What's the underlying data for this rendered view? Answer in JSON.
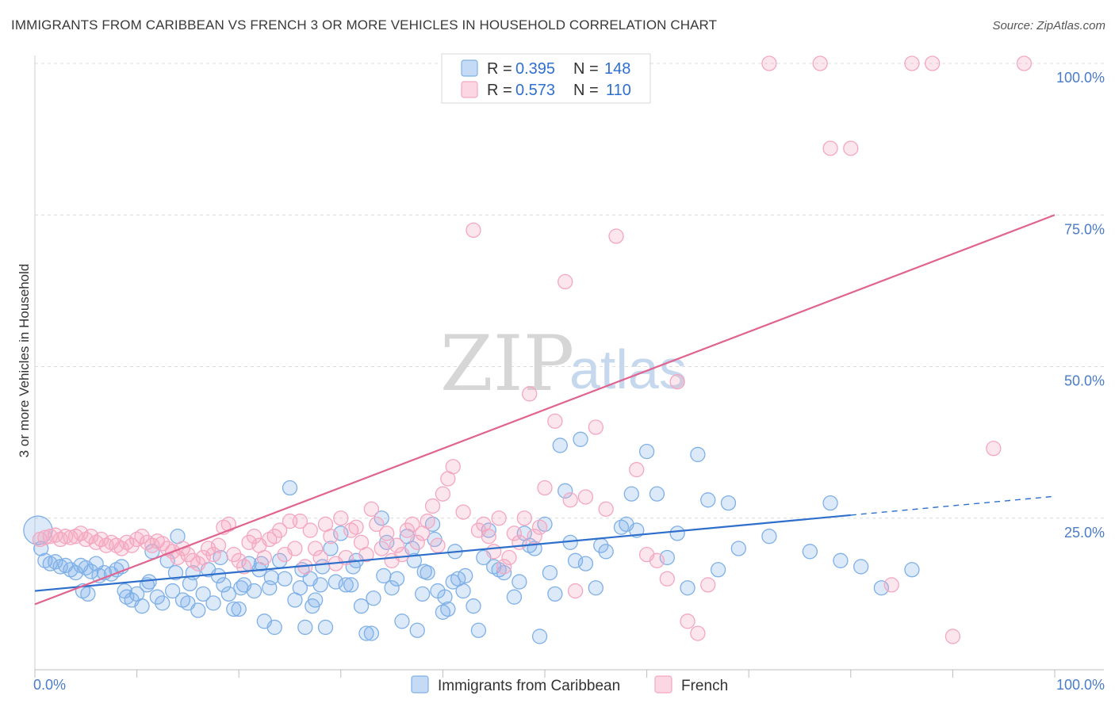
{
  "title": "IMMIGRANTS FROM CARIBBEAN VS FRENCH 3 OR MORE VEHICLES IN HOUSEHOLD CORRELATION CHART",
  "source": "Source: ZipAtlas.com",
  "watermark": {
    "zip": "ZIP",
    "atlas": "atlas"
  },
  "legend": {
    "series1": {
      "r_label": "R = ",
      "r_value": "0.395",
      "n_label": "N = ",
      "n_value": "148",
      "color": "#7fb0e8"
    },
    "series2": {
      "r_label": "R = ",
      "r_value": "0.573",
      "n_label": "N = ",
      "n_value": "110",
      "color": "#f4a7c0"
    }
  },
  "chart_data": {
    "type": "scatter",
    "title": "IMMIGRANTS FROM CARIBBEAN VS FRENCH 3 OR MORE VEHICLES IN HOUSEHOLD CORRELATION CHART",
    "xlabel": "",
    "ylabel": "3 or more Vehicles in Household",
    "xlim": [
      0,
      100
    ],
    "ylim": [
      0,
      100
    ],
    "x_ticks": [
      "0.0%",
      "100.0%"
    ],
    "y_ticks": [
      {
        "v": 25,
        "label": "25.0%"
      },
      {
        "v": 50,
        "label": "50.0%"
      },
      {
        "v": 75,
        "label": "75.0%"
      },
      {
        "v": 100,
        "label": "100.0%"
      }
    ],
    "grid": true,
    "legend_position": "top-center",
    "series": [
      {
        "name": "Immigrants from Caribbean",
        "color": "#7fb0e8",
        "line_color": "#2f6fcc",
        "trend": {
          "x0": 0,
          "y0": 13.0,
          "x1": 80,
          "y1": 25.5,
          "dash_to_x": 100,
          "dash_to_y": 28.6
        },
        "points": [
          [
            0.3,
            23
          ],
          [
            0.6,
            20
          ],
          [
            1,
            18
          ],
          [
            1.5,
            17.5
          ],
          [
            2,
            17.8
          ],
          [
            2.5,
            17
          ],
          [
            3,
            17.2
          ],
          [
            3.5,
            16.5
          ],
          [
            4,
            16
          ],
          [
            4.5,
            17.2
          ],
          [
            5,
            16.8
          ],
          [
            5.5,
            16.2
          ],
          [
            6,
            17.5
          ],
          [
            6.3,
            15.5
          ],
          [
            6.8,
            16
          ],
          [
            7.5,
            15.8
          ],
          [
            8,
            16.5
          ],
          [
            8.5,
            17
          ],
          [
            9,
            12
          ],
          [
            9.5,
            11.5
          ],
          [
            10,
            12.5
          ],
          [
            10.5,
            10.5
          ],
          [
            11,
            14
          ],
          [
            11.5,
            19.5
          ],
          [
            12,
            12
          ],
          [
            12.5,
            11
          ],
          [
            13,
            18
          ],
          [
            13.5,
            13
          ],
          [
            14,
            22
          ],
          [
            14.5,
            11.5
          ],
          [
            15,
            11
          ],
          [
            15.5,
            16
          ],
          [
            16,
            9.8
          ],
          [
            16.5,
            12.5
          ],
          [
            17,
            16.5
          ],
          [
            17.5,
            11
          ],
          [
            18,
            15.5
          ],
          [
            18.5,
            14
          ],
          [
            19,
            12.5
          ],
          [
            19.5,
            10
          ],
          [
            20,
            10
          ],
          [
            20.5,
            14
          ],
          [
            21,
            17.5
          ],
          [
            21.5,
            13
          ],
          [
            22,
            16.5
          ],
          [
            22.5,
            8
          ],
          [
            23,
            13.5
          ],
          [
            23.5,
            7
          ],
          [
            24,
            18
          ],
          [
            24.5,
            15
          ],
          [
            25,
            30
          ],
          [
            25.5,
            11.5
          ],
          [
            26,
            13.5
          ],
          [
            26.5,
            7
          ],
          [
            27,
            15
          ],
          [
            27.5,
            11.5
          ],
          [
            28,
            14
          ],
          [
            28.5,
            7
          ],
          [
            29,
            20
          ],
          [
            29.5,
            14.5
          ],
          [
            30,
            22.5
          ],
          [
            30.5,
            14
          ],
          [
            31,
            14
          ],
          [
            31.5,
            18
          ],
          [
            32,
            10.5
          ],
          [
            32.5,
            6
          ],
          [
            33,
            6
          ],
          [
            34,
            25
          ],
          [
            34.5,
            21
          ],
          [
            35,
            13.5
          ],
          [
            35.5,
            15
          ],
          [
            36,
            8
          ],
          [
            36.5,
            22
          ],
          [
            37,
            20
          ],
          [
            37.5,
            6.5
          ],
          [
            38,
            12.5
          ],
          [
            38.5,
            16
          ],
          [
            39,
            24
          ],
          [
            39.5,
            13
          ],
          [
            40,
            9.5
          ],
          [
            40.5,
            10
          ],
          [
            41,
            14.5
          ],
          [
            41.5,
            15
          ],
          [
            42,
            13
          ],
          [
            43,
            10.5
          ],
          [
            43.5,
            6.5
          ],
          [
            44,
            18.5
          ],
          [
            44.5,
            23
          ],
          [
            45,
            17
          ],
          [
            45.5,
            16.5
          ],
          [
            46,
            16
          ],
          [
            47,
            12
          ],
          [
            47.5,
            14.5
          ],
          [
            48,
            22.5
          ],
          [
            48.5,
            20.5
          ],
          [
            49,
            20
          ],
          [
            49.5,
            5.5
          ],
          [
            50,
            24
          ],
          [
            50.5,
            16
          ],
          [
            51,
            12.5
          ],
          [
            51.5,
            37
          ],
          [
            52,
            29.5
          ],
          [
            52.5,
            21
          ],
          [
            53,
            18
          ],
          [
            53.5,
            38
          ],
          [
            54,
            17.5
          ],
          [
            55,
            13.5
          ],
          [
            55.5,
            20.5
          ],
          [
            56,
            19.5
          ],
          [
            57.5,
            23.5
          ],
          [
            58,
            24
          ],
          [
            58.5,
            29
          ],
          [
            59,
            23
          ],
          [
            60,
            36
          ],
          [
            61,
            29
          ],
          [
            62,
            18.5
          ],
          [
            63,
            22.5
          ],
          [
            64,
            13.5
          ],
          [
            65,
            35.5
          ],
          [
            66,
            28
          ],
          [
            67,
            16.5
          ],
          [
            68,
            27.5
          ],
          [
            69,
            20
          ],
          [
            72,
            22
          ],
          [
            76,
            19.5
          ],
          [
            78,
            27.5
          ],
          [
            79,
            18
          ],
          [
            81,
            17
          ],
          [
            83,
            13.5
          ],
          [
            86,
            16.5
          ],
          [
            4.7,
            13
          ],
          [
            5.2,
            12.5
          ],
          [
            8.8,
            13
          ],
          [
            11.2,
            14.5
          ],
          [
            13.8,
            16
          ],
          [
            15.2,
            14.2
          ],
          [
            18.2,
            18.5
          ],
          [
            20.2,
            13.5
          ],
          [
            22.2,
            17.5
          ],
          [
            23.2,
            15.2
          ],
          [
            26.2,
            16.5
          ],
          [
            27.2,
            10.5
          ],
          [
            28.2,
            17
          ],
          [
            31.2,
            17
          ],
          [
            33.2,
            11.8
          ],
          [
            34.2,
            15.5
          ],
          [
            37.2,
            18
          ],
          [
            38.2,
            16.2
          ],
          [
            39.2,
            21.5
          ],
          [
            40.2,
            12
          ],
          [
            41.2,
            19.5
          ],
          [
            42.2,
            15.5
          ]
        ]
      },
      {
        "name": "French",
        "color": "#f4a7c0",
        "line_color": "#e0648f",
        "trend": {
          "x0": 0,
          "y0": 10.8,
          "x1": 100,
          "y1": 75.0
        },
        "points": [
          [
            0.5,
            21.5
          ],
          [
            1,
            21.8
          ],
          [
            1.5,
            22
          ],
          [
            2,
            22.2
          ],
          [
            2.5,
            21.5
          ],
          [
            3,
            22
          ],
          [
            3.5,
            21.8
          ],
          [
            4,
            22
          ],
          [
            4.5,
            22.5
          ],
          [
            5,
            21.5
          ],
          [
            5.5,
            22
          ],
          [
            6,
            21
          ],
          [
            6.5,
            21.5
          ],
          [
            7,
            20.5
          ],
          [
            7.5,
            21
          ],
          [
            8,
            20.5
          ],
          [
            8.5,
            20
          ],
          [
            9,
            21
          ],
          [
            9.5,
            20.5
          ],
          [
            10,
            21.5
          ],
          [
            10.5,
            22
          ],
          [
            11,
            21
          ],
          [
            11.5,
            20.5
          ],
          [
            12,
            21.2
          ],
          [
            12.5,
            20.8
          ],
          [
            13,
            20
          ],
          [
            13.5,
            19.5
          ],
          [
            14,
            18.5
          ],
          [
            14.5,
            20
          ],
          [
            15,
            19
          ],
          [
            15.5,
            18
          ],
          [
            16,
            17.5
          ],
          [
            16.5,
            18.5
          ],
          [
            17,
            20
          ],
          [
            17.5,
            19
          ],
          [
            18,
            20.5
          ],
          [
            18.5,
            23.5
          ],
          [
            19,
            24
          ],
          [
            19.5,
            19
          ],
          [
            20,
            18
          ],
          [
            20.5,
            17
          ],
          [
            21,
            21
          ],
          [
            21.5,
            22
          ],
          [
            22,
            20.5
          ],
          [
            22.5,
            18.5
          ],
          [
            23,
            21.5
          ],
          [
            23.5,
            22
          ],
          [
            24,
            23
          ],
          [
            24.5,
            19
          ],
          [
            25,
            24.5
          ],
          [
            25.5,
            20
          ],
          [
            26,
            24.5
          ],
          [
            26.5,
            17
          ],
          [
            27,
            23
          ],
          [
            27.5,
            20
          ],
          [
            28,
            18.5
          ],
          [
            28.5,
            24
          ],
          [
            29,
            22
          ],
          [
            29.5,
            17.5
          ],
          [
            30,
            25
          ],
          [
            30.5,
            18.5
          ],
          [
            31,
            23
          ],
          [
            31.5,
            23.5
          ],
          [
            32,
            21
          ],
          [
            32.5,
            19
          ],
          [
            33,
            26.5
          ],
          [
            33.5,
            24
          ],
          [
            34,
            20
          ],
          [
            34.5,
            22.5
          ],
          [
            35,
            18
          ],
          [
            35.5,
            20.5
          ],
          [
            36,
            19
          ],
          [
            36.5,
            23
          ],
          [
            37,
            24
          ],
          [
            37.5,
            21
          ],
          [
            38,
            22.5
          ],
          [
            38.5,
            24.5
          ],
          [
            39,
            27
          ],
          [
            39.5,
            20.5
          ],
          [
            40,
            29
          ],
          [
            40.5,
            31.5
          ],
          [
            41,
            33.5
          ],
          [
            42,
            26
          ],
          [
            43,
            72.5
          ],
          [
            43.5,
            23
          ],
          [
            44,
            24
          ],
          [
            44.5,
            22
          ],
          [
            45,
            19.5
          ],
          [
            45.5,
            25
          ],
          [
            46,
            17
          ],
          [
            46.5,
            18.5
          ],
          [
            47,
            22.5
          ],
          [
            47.5,
            21
          ],
          [
            48,
            25
          ],
          [
            48.5,
            45.5
          ],
          [
            49,
            22
          ],
          [
            49.5,
            23.5
          ],
          [
            50,
            30
          ],
          [
            51,
            41
          ],
          [
            52,
            64
          ],
          [
            52.5,
            28
          ],
          [
            53,
            13
          ],
          [
            54,
            28.5
          ],
          [
            55,
            40
          ],
          [
            56,
            26.5
          ],
          [
            57,
            71.5
          ],
          [
            59,
            33
          ],
          [
            60,
            19
          ],
          [
            61,
            18
          ],
          [
            62,
            15
          ],
          [
            63,
            47.5
          ],
          [
            64,
            8
          ],
          [
            65,
            6
          ],
          [
            66,
            14
          ],
          [
            72,
            100
          ],
          [
            77,
            100
          ],
          [
            78,
            86
          ],
          [
            80,
            86
          ],
          [
            84,
            14
          ],
          [
            86,
            100
          ],
          [
            88,
            100
          ],
          [
            90,
            5.5
          ],
          [
            94,
            36.5
          ],
          [
            97,
            100
          ]
        ]
      }
    ]
  },
  "bottom_legend": {
    "item1": "Immigrants from Caribbean",
    "item2": "French"
  }
}
